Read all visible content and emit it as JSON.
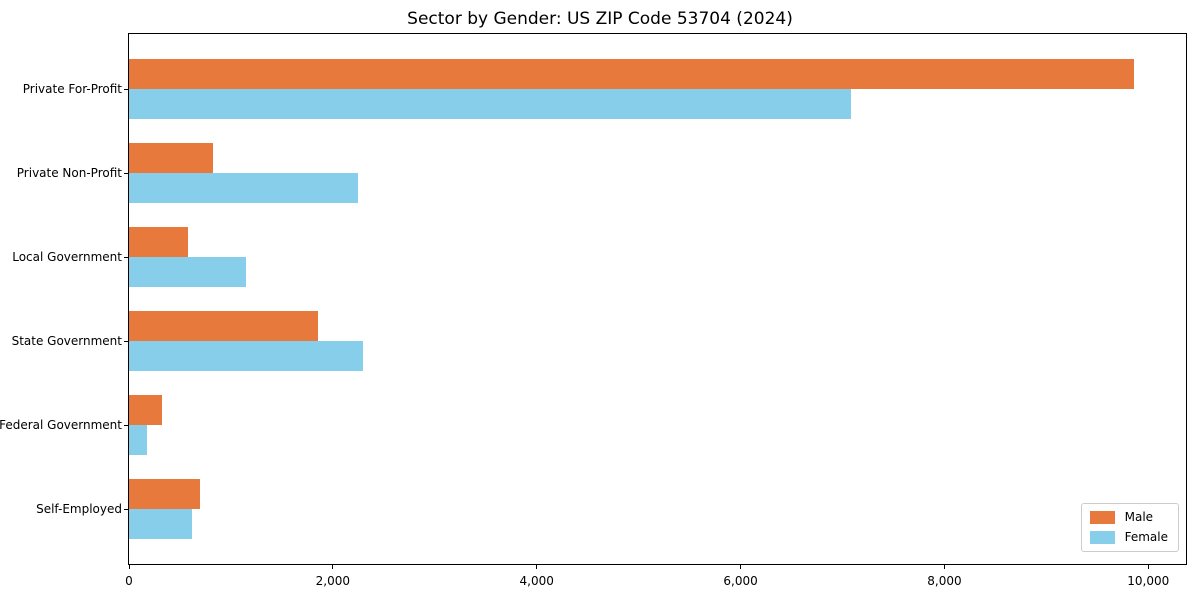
{
  "chart_data": {
    "type": "bar",
    "orientation": "horizontal",
    "title": "Sector by Gender: US ZIP Code 53704 (2024)",
    "xlabel": "",
    "ylabel": "",
    "categories": [
      "Private For-Profit",
      "Private Non-Profit",
      "Local Government",
      "State Government",
      "Federal Government",
      "Self-Employed"
    ],
    "series": [
      {
        "name": "Male",
        "color": "#E8793C",
        "values": [
          9860,
          820,
          580,
          1850,
          320,
          695
        ]
      },
      {
        "name": "Female",
        "color": "#87CEEB",
        "values": [
          7080,
          2250,
          1150,
          2300,
          175,
          615
        ]
      }
    ],
    "xlim": [
      0,
      10370
    ],
    "xticks": [
      {
        "value": 0,
        "label": "0"
      },
      {
        "value": 2000,
        "label": "2,000"
      },
      {
        "value": 4000,
        "label": "4,000"
      },
      {
        "value": 6000,
        "label": "6,000"
      },
      {
        "value": 8000,
        "label": "8,000"
      },
      {
        "value": 10000,
        "label": "10,000"
      }
    ],
    "grid": false,
    "legend": {
      "position": "lower right"
    }
  },
  "colors": {
    "background": "#ffffff",
    "spine": "#000000",
    "legend_border": "#cccccc"
  }
}
